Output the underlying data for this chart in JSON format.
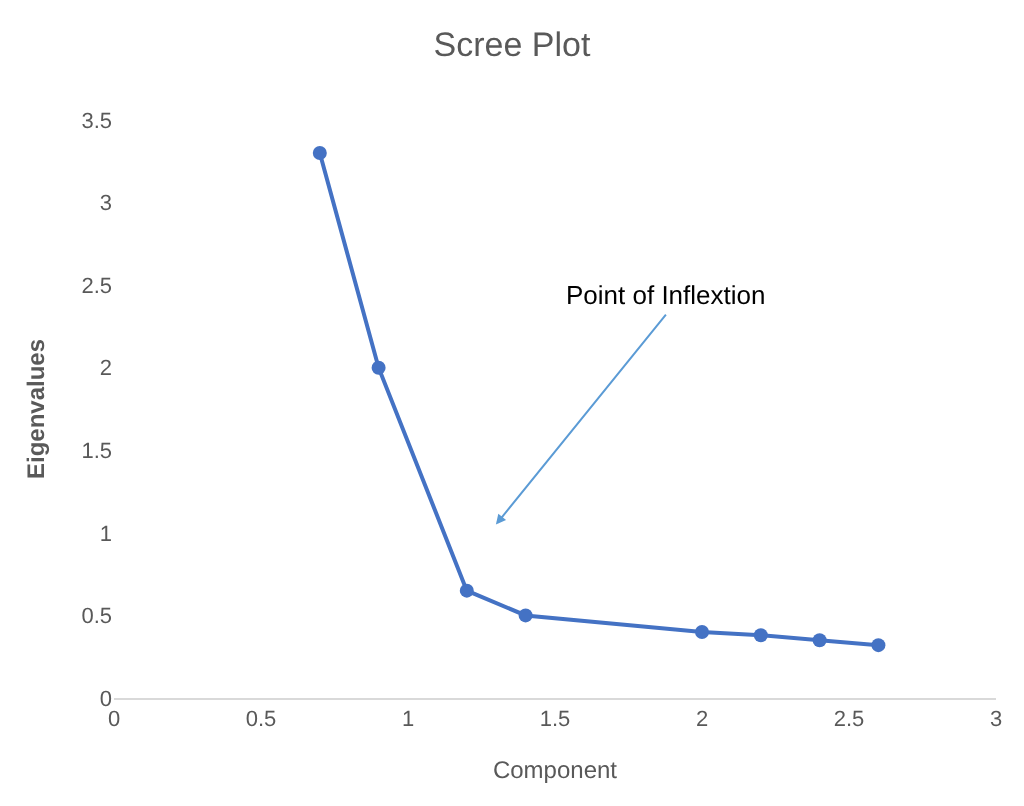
{
  "chart_data": {
    "type": "line",
    "title": "Scree Plot",
    "xlabel": "Component",
    "ylabel": "Eigenvalues",
    "x": [
      0.7,
      0.9,
      1.2,
      1.4,
      2.0,
      2.2,
      2.4,
      2.6
    ],
    "series": [
      {
        "color": "#4472c4",
        "values": [
          3.3,
          2.0,
          0.65,
          0.5,
          0.4,
          0.38,
          0.35,
          0.32
        ]
      }
    ],
    "xlim": [
      0,
      3
    ],
    "xticks": [
      0,
      0.5,
      1,
      1.5,
      2,
      2.5,
      3
    ],
    "ylim": [
      0,
      3.5
    ],
    "yticks": [
      0,
      0.5,
      1,
      1.5,
      2,
      2.5,
      3,
      3.5
    ],
    "grid": false,
    "legend": false,
    "marker": "circle",
    "line_style": "solid",
    "annotations": [
      "Point of Inflextion"
    ]
  }
}
